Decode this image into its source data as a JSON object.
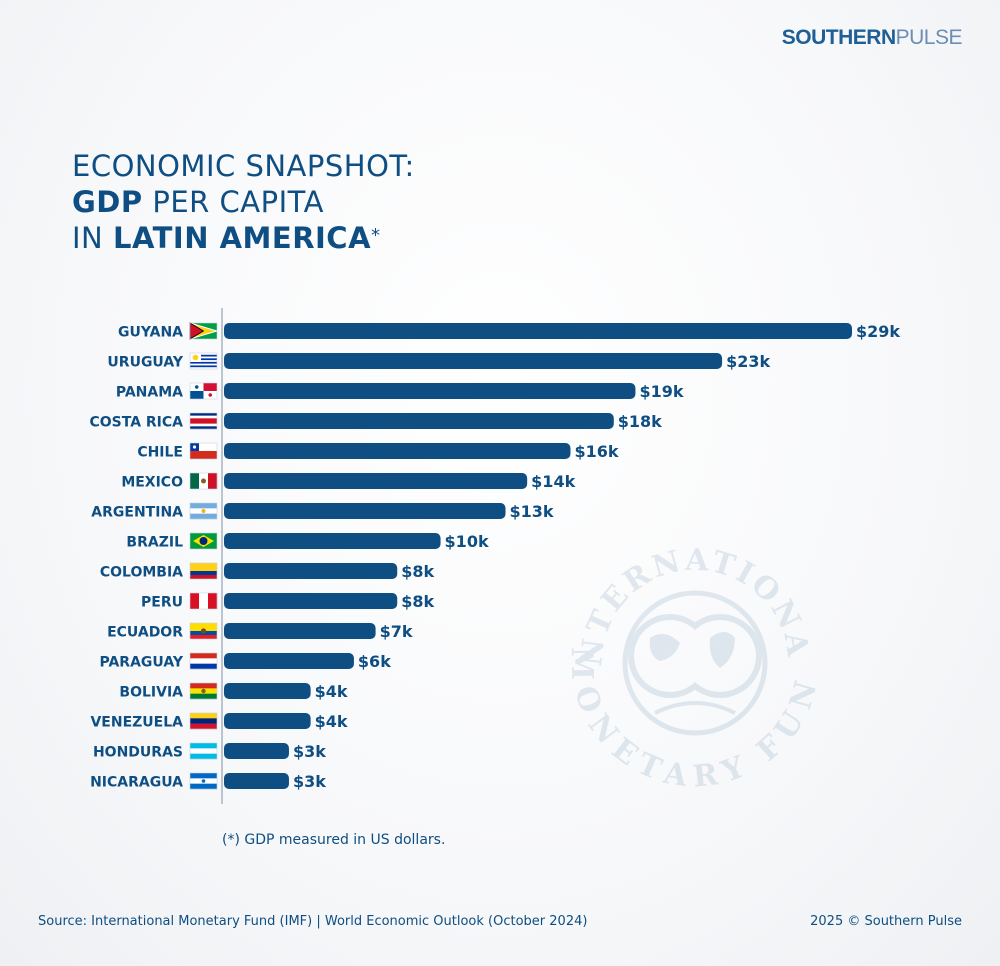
{
  "brand": {
    "part1": "SOUTHERN",
    "part2": "PULSE",
    "logo_icon": "compass-star-icon"
  },
  "title": {
    "line1": "ECONOMIC SNAPSHOT:",
    "line2_bold": "GDP",
    "line2_rest": " PER CAPITA",
    "line3_pre": "IN ",
    "line3_bold": "LATIN AMERICA",
    "line3_mark": "*"
  },
  "footnote": "(*) GDP measured in US dollars.",
  "source": "Source: International Monetary Fund (IMF) | World Economic Outlook (October 2024)",
  "copyright": "2025 © Southern Pulse",
  "watermark": {
    "text_top": "INTERNATIONAL",
    "text_bottom": "MONETARY FUND"
  },
  "colors": {
    "bar": "#0f4e82",
    "text": "#0f4e82",
    "axis": "#a7b4c2"
  },
  "chart_data": {
    "type": "bar",
    "orientation": "horizontal",
    "title": "ECONOMIC SNAPSHOT: GDP PER CAPITA IN LATIN AMERICA*",
    "xlabel": "",
    "ylabel": "",
    "unit": "thousand US dollars",
    "categories": [
      "GUYANA",
      "URUGUAY",
      "PANAMA",
      "COSTA RICA",
      "CHILE",
      "MEXICO",
      "ARGENTINA",
      "BRAZIL",
      "COLOMBIA",
      "PERU",
      "ECUADOR",
      "PARAGUAY",
      "BOLIVIA",
      "VENEZUELA",
      "HONDURAS",
      "NICARAGUA"
    ],
    "values": [
      29,
      23,
      19,
      18,
      16,
      14,
      13,
      10,
      8,
      8,
      7,
      6,
      4,
      4,
      3,
      3
    ],
    "labels": [
      "$29k",
      "$23k",
      "$19k",
      "$18k",
      "$16k",
      "$14k",
      "$13k",
      "$10k",
      "$8k",
      "$8k",
      "$7k",
      "$6k",
      "$4k",
      "$4k",
      "$3k",
      "$3k"
    ],
    "flags": [
      "guyana-flag-icon",
      "uruguay-flag-icon",
      "panama-flag-icon",
      "costa-rica-flag-icon",
      "chile-flag-icon",
      "mexico-flag-icon",
      "argentina-flag-icon",
      "brazil-flag-icon",
      "colombia-flag-icon",
      "peru-flag-icon",
      "ecuador-flag-icon",
      "paraguay-flag-icon",
      "bolivia-flag-icon",
      "venezuela-flag-icon",
      "honduras-flag-icon",
      "nicaragua-flag-icon"
    ],
    "xlim": [
      0,
      29
    ],
    "grid": false,
    "legend": "none"
  }
}
